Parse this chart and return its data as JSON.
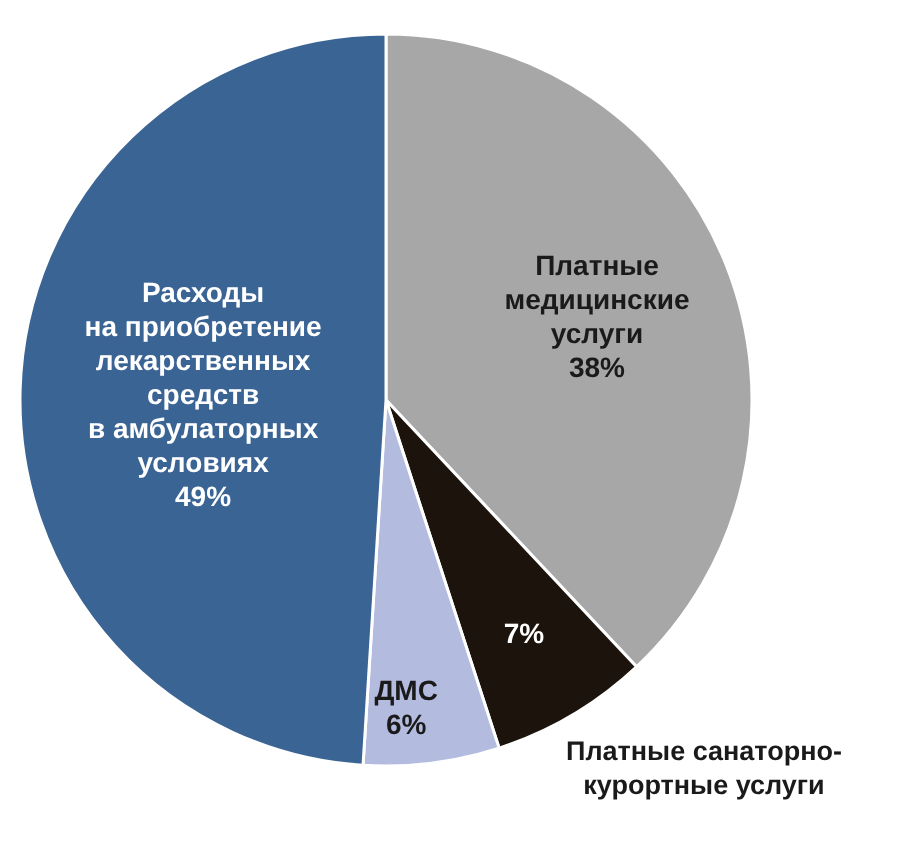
{
  "chart_data": {
    "type": "pie",
    "categories": [
      "Платные\nмедицинские\nуслуги",
      "Платные санаторно-\nкурортные услуги",
      "ДМС",
      "Расходы\nна приобретение\nлекарственных\nсредств\nв амбулаторных\nусловиях"
    ],
    "values": [
      38,
      7,
      6,
      49
    ],
    "value_labels": [
      "38%",
      "7%",
      "6%",
      "49%"
    ],
    "colors": [
      "#a7a7a7",
      "#1c140c",
      "#b3bbdf",
      "#3a6494"
    ]
  }
}
